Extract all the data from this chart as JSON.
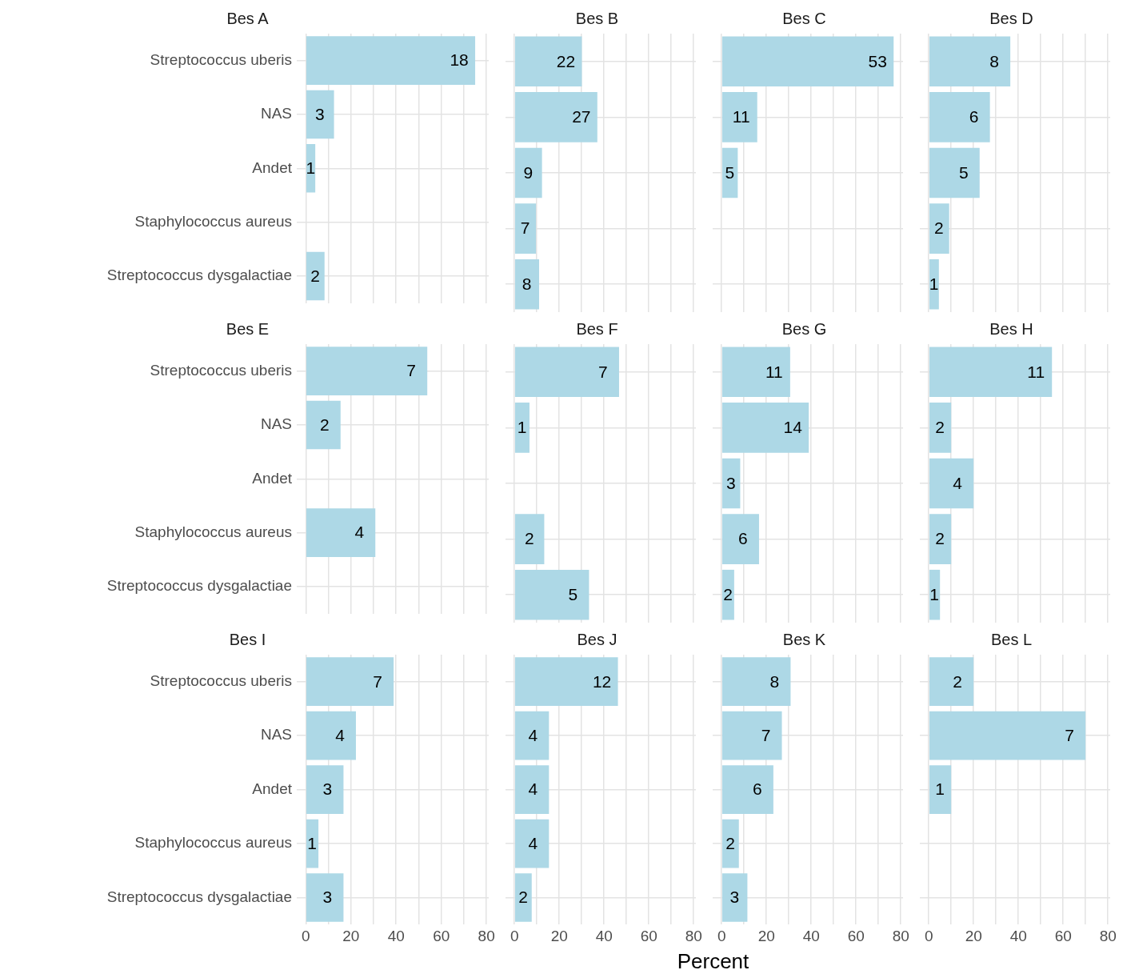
{
  "chart_data": [
    {
      "type": "bar",
      "orientation": "horizontal",
      "title": "Bes A",
      "categories": [
        "Streptococcus uberis",
        "NAS",
        "Andet",
        "Staphylococcus aureus",
        "Streptococcus dysgalactiae"
      ],
      "values": [
        75,
        12.5,
        4.2,
        null,
        8.3
      ],
      "annotations": [
        {
          "text": "18",
          "x": 75,
          "y": "Streptococcus uberis"
        },
        {
          "text": "3",
          "x": 12.5,
          "y": "NAS"
        },
        {
          "text": "1",
          "x": 4.2,
          "y": "Andet"
        },
        {
          "text": "2",
          "x": 8.3,
          "y": "Streptococcus dysgalactiae"
        }
      ],
      "color": "#add8e6",
      "xlim": [
        -4,
        81
      ],
      "xticks": [
        0,
        {
          "value": 10,
          "label": null
        },
        20,
        {
          "value": 30,
          "label": null
        },
        40,
        {
          "value": 50,
          "label": null
        },
        60,
        {
          "value": 70,
          "label": null
        },
        80
      ],
      "grid": true,
      "tick_labels": "y"
    },
    {
      "type": "bar",
      "orientation": "horizontal",
      "title": "Bes B",
      "categories": [
        "Streptococcus uberis",
        "NAS",
        "Andet",
        "Staphylococcus aureus",
        "Streptococcus dysgalactiae"
      ],
      "values": [
        30.1,
        37,
        12.3,
        9.6,
        11
      ],
      "annotations": [
        {
          "text": "22",
          "x": 30.1,
          "y": "Streptococcus uberis"
        },
        {
          "text": "27",
          "x": 37,
          "y": "NAS"
        },
        {
          "text": "9",
          "x": 12.3,
          "y": "Andet"
        },
        {
          "text": "7",
          "x": 9.6,
          "y": "Staphylococcus aureus"
        },
        {
          "text": "8",
          "x": 11,
          "y": "Streptococcus dysgalactiae"
        }
      ],
      "color": "#add8e6",
      "xlim": [
        -4,
        81
      ],
      "xticks": [
        0,
        {
          "value": 10,
          "label": null
        },
        20,
        {
          "value": 30,
          "label": null
        },
        40,
        {
          "value": 50,
          "label": null
        },
        60,
        {
          "value": 70,
          "label": null
        },
        80
      ],
      "grid": true,
      "tick_labels": false
    },
    {
      "type": "bar",
      "orientation": "horizontal",
      "title": "Bes C",
      "categories": [
        "Streptococcus uberis",
        "NAS",
        "Andet",
        "Staphylococcus aureus",
        "Streptococcus dysgalactiae"
      ],
      "values": [
        76.8,
        15.9,
        7.2,
        null,
        null
      ],
      "annotations": [
        {
          "text": "53",
          "x": 76.8,
          "y": "Streptococcus uberis"
        },
        {
          "text": "11",
          "x": 15.9,
          "y": "NAS"
        },
        {
          "text": "5",
          "x": 7.2,
          "y": "Andet"
        }
      ],
      "color": "#add8e6",
      "xlim": [
        -4,
        81
      ],
      "xticks": [
        0,
        {
          "value": 10,
          "label": null
        },
        20,
        {
          "value": 30,
          "label": null
        },
        40,
        {
          "value": 50,
          "label": null
        },
        60,
        {
          "value": 70,
          "label": null
        },
        80
      ],
      "grid": true,
      "tick_labels": false
    },
    {
      "type": "bar",
      "orientation": "horizontal",
      "title": "Bes D",
      "categories": [
        "Streptococcus uberis",
        "NAS",
        "Andet",
        "Staphylococcus aureus",
        "Streptococcus dysgalactiae"
      ],
      "values": [
        36.4,
        27.3,
        22.7,
        9.1,
        4.5
      ],
      "annotations": [
        {
          "text": "8",
          "x": 36.4,
          "y": "Streptococcus uberis"
        },
        {
          "text": "6",
          "x": 27.3,
          "y": "NAS"
        },
        {
          "text": "5",
          "x": 22.7,
          "y": "Andet"
        },
        {
          "text": "2",
          "x": 9.1,
          "y": "Staphylococcus aureus"
        },
        {
          "text": "1",
          "x": 4.5,
          "y": "Streptococcus dysgalactiae"
        }
      ],
      "color": "#add8e6",
      "xlim": [
        -4,
        81
      ],
      "xticks": [
        0,
        {
          "value": 10,
          "label": null
        },
        20,
        {
          "value": 30,
          "label": null
        },
        40,
        {
          "value": 50,
          "label": null
        },
        60,
        {
          "value": 70,
          "label": null
        },
        80
      ],
      "grid": true,
      "tick_labels": false
    },
    {
      "type": "bar",
      "orientation": "horizontal",
      "title": "Bes E",
      "categories": [
        "Streptococcus uberis",
        "NAS",
        "Andet",
        "Staphylococcus aureus",
        "Streptococcus dysgalactiae"
      ],
      "values": [
        53.8,
        15.4,
        null,
        30.8,
        null
      ],
      "annotations": [
        {
          "text": "7",
          "x": 53.8,
          "y": "Streptococcus uberis"
        },
        {
          "text": "2",
          "x": 15.4,
          "y": "NAS"
        },
        {
          "text": "4",
          "x": 30.8,
          "y": "Staphylococcus aureus"
        }
      ],
      "color": "#add8e6",
      "xlim": [
        -4,
        81
      ],
      "xticks": [
        0,
        {
          "value": 10,
          "label": null
        },
        20,
        {
          "value": 30,
          "label": null
        },
        40,
        {
          "value": 50,
          "label": null
        },
        60,
        {
          "value": 70,
          "label": null
        },
        80
      ],
      "grid": true,
      "tick_labels": "y"
    },
    {
      "type": "bar",
      "orientation": "horizontal",
      "title": "Bes F",
      "categories": [
        "Streptococcus uberis",
        "NAS",
        "Andet",
        "Staphylococcus aureus",
        "Streptococcus dysgalactiae"
      ],
      "values": [
        46.7,
        6.7,
        null,
        13.3,
        33.3
      ],
      "annotations": [
        {
          "text": "7",
          "x": 46.7,
          "y": "Streptococcus uberis"
        },
        {
          "text": "1",
          "x": 6.7,
          "y": "NAS"
        },
        {
          "text": "2",
          "x": 13.3,
          "y": "Staphylococcus aureus"
        },
        {
          "text": "5",
          "x": 33.3,
          "y": "Streptococcus dysgalactiae"
        }
      ],
      "color": "#add8e6",
      "xlim": [
        -4,
        81
      ],
      "xticks": [
        0,
        {
          "value": 10,
          "label": null
        },
        20,
        {
          "value": 30,
          "label": null
        },
        40,
        {
          "value": 50,
          "label": null
        },
        60,
        {
          "value": 70,
          "label": null
        },
        80
      ],
      "grid": true,
      "tick_labels": false
    },
    {
      "type": "bar",
      "orientation": "horizontal",
      "title": "Bes G",
      "categories": [
        "Streptococcus uberis",
        "NAS",
        "Andet",
        "Staphylococcus aureus",
        "Streptococcus dysgalactiae"
      ],
      "values": [
        30.6,
        38.9,
        8.3,
        16.7,
        5.6
      ],
      "annotations": [
        {
          "text": "11",
          "x": 30.6,
          "y": "Streptococcus uberis"
        },
        {
          "text": "14",
          "x": 38.9,
          "y": "NAS"
        },
        {
          "text": "3",
          "x": 8.3,
          "y": "Andet"
        },
        {
          "text": "6",
          "x": 16.7,
          "y": "Staphylococcus aureus"
        },
        {
          "text": "2",
          "x": 5.6,
          "y": "Streptococcus dysgalactiae"
        }
      ],
      "color": "#add8e6",
      "xlim": [
        -4,
        81
      ],
      "xticks": [
        0,
        {
          "value": 10,
          "label": null
        },
        20,
        {
          "value": 30,
          "label": null
        },
        40,
        {
          "value": 50,
          "label": null
        },
        60,
        {
          "value": 70,
          "label": null
        },
        80
      ],
      "grid": true,
      "tick_labels": false
    },
    {
      "type": "bar",
      "orientation": "horizontal",
      "title": "Bes H",
      "categories": [
        "Streptococcus uberis",
        "NAS",
        "Andet",
        "Staphylococcus aureus",
        "Streptococcus dysgalactiae"
      ],
      "values": [
        55,
        10,
        20,
        10,
        5
      ],
      "annotations": [
        {
          "text": "11",
          "x": 55,
          "y": "Streptococcus uberis"
        },
        {
          "text": "2",
          "x": 10,
          "y": "NAS"
        },
        {
          "text": "4",
          "x": 20,
          "y": "Andet"
        },
        {
          "text": "2",
          "x": 10,
          "y": "Staphylococcus aureus"
        },
        {
          "text": "1",
          "x": 5,
          "y": "Streptococcus dysgalactiae"
        }
      ],
      "color": "#add8e6",
      "xlim": [
        -4,
        81
      ],
      "xticks": [
        0,
        {
          "value": 10,
          "label": null
        },
        20,
        {
          "value": 30,
          "label": null
        },
        40,
        {
          "value": 50,
          "label": null
        },
        60,
        {
          "value": 70,
          "label": null
        },
        80
      ],
      "grid": true,
      "tick_labels": false
    },
    {
      "type": "bar",
      "orientation": "horizontal",
      "title": "Bes I",
      "categories": [
        "Streptococcus uberis",
        "NAS",
        "Andet",
        "Staphylococcus aureus",
        "Streptococcus dysgalactiae"
      ],
      "values": [
        38.9,
        22.2,
        16.7,
        5.6,
        16.7
      ],
      "annotations": [
        {
          "text": "7",
          "x": 38.9,
          "y": "Streptococcus uberis"
        },
        {
          "text": "4",
          "x": 22.2,
          "y": "NAS"
        },
        {
          "text": "3",
          "x": 16.7,
          "y": "Andet"
        },
        {
          "text": "1",
          "x": 5.6,
          "y": "Staphylococcus aureus"
        },
        {
          "text": "3",
          "x": 16.7,
          "y": "Streptococcus dysgalactiae"
        }
      ],
      "color": "#add8e6",
      "xlim": [
        -4,
        81
      ],
      "xticks": [
        0,
        {
          "value": 10,
          "label": null
        },
        20,
        {
          "value": 30,
          "label": null
        },
        40,
        {
          "value": 50,
          "label": null
        },
        60,
        {
          "value": 70,
          "label": null
        },
        80
      ],
      "grid": true
    },
    {
      "type": "bar",
      "orientation": "horizontal",
      "title": "Bes J",
      "xlabel": "Percent",
      "categories": [
        "Streptococcus uberis",
        "NAS",
        "Andet",
        "Staphylococcus aureus",
        "Streptococcus dysgalactiae"
      ],
      "values": [
        46.2,
        15.4,
        15.4,
        15.4,
        7.7
      ],
      "annotations": [
        {
          "text": "12",
          "x": 46.2,
          "y": "Streptococcus uberis"
        },
        {
          "text": "4",
          "x": 15.4,
          "y": "NAS"
        },
        {
          "text": "4",
          "x": 15.4,
          "y": "Andet"
        },
        {
          "text": "4",
          "x": 15.4,
          "y": "Staphylococcus aureus"
        },
        {
          "text": "2",
          "x": 7.7,
          "y": "Streptococcus dysgalactiae"
        }
      ],
      "color": "#add8e6",
      "xlim": [
        -4,
        81
      ],
      "xticks": [
        0,
        {
          "value": 10,
          "label": null
        },
        20,
        {
          "value": 30,
          "label": null
        },
        40,
        {
          "value": 50,
          "label": null
        },
        60,
        {
          "value": 70,
          "label": null
        },
        80
      ],
      "grid": true,
      "tick_labels": "x"
    },
    {
      "type": "bar",
      "orientation": "horizontal",
      "title": "Bes K",
      "categories": [
        "Streptococcus uberis",
        "NAS",
        "Andet",
        "Staphylococcus aureus",
        "Streptococcus dysgalactiae"
      ],
      "values": [
        30.8,
        26.9,
        23.1,
        7.7,
        11.5
      ],
      "annotations": [
        {
          "text": "8",
          "x": 30.8,
          "y": "Streptococcus uberis"
        },
        {
          "text": "7",
          "x": 26.9,
          "y": "NAS"
        },
        {
          "text": "6",
          "x": 23.1,
          "y": "Andet"
        },
        {
          "text": "2",
          "x": 7.7,
          "y": "Staphylococcus aureus"
        },
        {
          "text": "3",
          "x": 11.5,
          "y": "Streptococcus dysgalactiae"
        }
      ],
      "color": "#add8e6",
      "xlim": [
        -4,
        81
      ],
      "xticks": [
        0,
        {
          "value": 10,
          "label": null
        },
        20,
        {
          "value": 30,
          "label": null
        },
        40,
        {
          "value": 50,
          "label": null
        },
        60,
        {
          "value": 70,
          "label": null
        },
        80
      ],
      "grid": true,
      "tick_labels": "x"
    },
    {
      "type": "bar",
      "orientation": "horizontal",
      "title": "Bes L",
      "categories": [
        "Streptococcus uberis",
        "NAS",
        "Andet",
        "Staphylococcus aureus",
        "Streptococcus dysgalactiae"
      ],
      "values": [
        20,
        70,
        10,
        null,
        null
      ],
      "annotations": [
        {
          "text": "2",
          "x": 20,
          "y": "Streptococcus uberis"
        },
        {
          "text": "7",
          "x": 70,
          "y": "NAS"
        },
        {
          "text": "1",
          "x": 10,
          "y": "Andet"
        }
      ],
      "color": "#add8e6",
      "xlim": [
        -4,
        81
      ],
      "xticks": [
        0,
        {
          "value": 10,
          "label": null
        },
        20,
        {
          "value": 30,
          "label": null
        },
        40,
        {
          "value": 50,
          "label": null
        },
        60,
        {
          "value": 70,
          "label": null
        },
        80
      ],
      "grid": true,
      "tick_labels": "x"
    }
  ]
}
